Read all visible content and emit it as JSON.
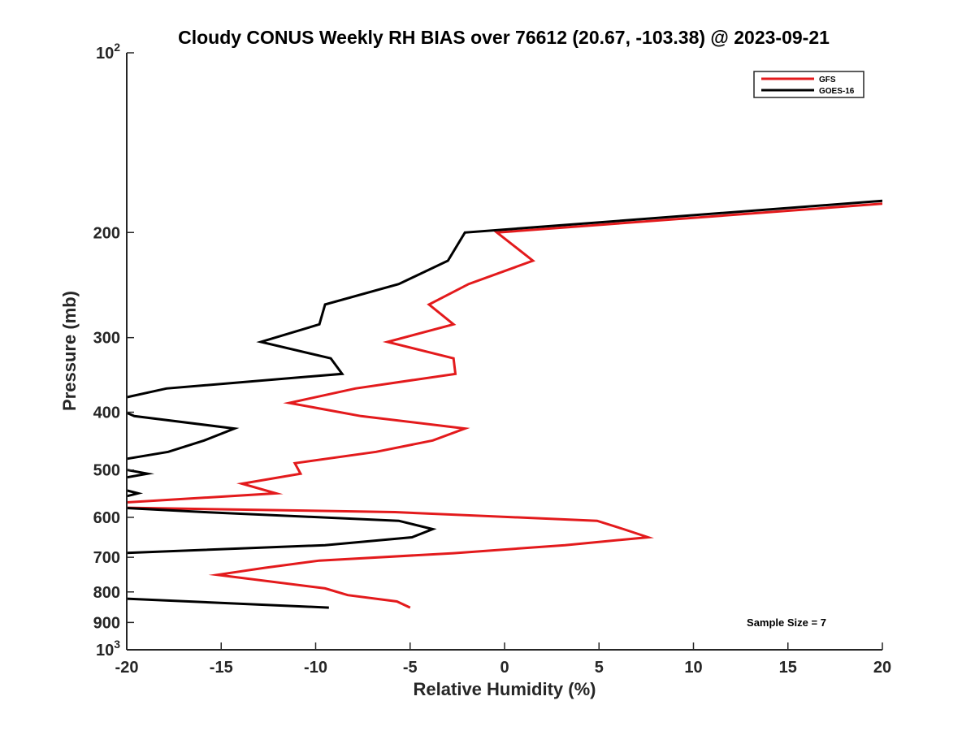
{
  "chart_data": {
    "type": "line",
    "title": "Cloudy CONUS Weekly RH BIAS over 76612 (20.67, -103.38) @ 2023-09-21",
    "xlabel": "Relative Humidity (%)",
    "ylabel": "Pressure (mb)",
    "xlim": [
      -20,
      20
    ],
    "ylim": [
      100,
      1000
    ],
    "yscale": "log",
    "yreversed": true,
    "xticks": [
      -20,
      -15,
      -10,
      -5,
      0,
      5,
      10,
      15,
      20
    ],
    "yticks": [
      {
        "value": 100,
        "label": "10",
        "sup": "2"
      },
      {
        "value": 200,
        "label": "200"
      },
      {
        "value": 300,
        "label": "300"
      },
      {
        "value": 400,
        "label": "400"
      },
      {
        "value": 500,
        "label": "500"
      },
      {
        "value": 600,
        "label": "600"
      },
      {
        "value": 700,
        "label": "700"
      },
      {
        "value": 800,
        "label": "800"
      },
      {
        "value": 900,
        "label": "900"
      },
      {
        "value": 1000,
        "label": "10",
        "sup": "3"
      }
    ],
    "legend_position": "top-right",
    "annotation": "Sample Size = 7",
    "series": [
      {
        "name": "GFS",
        "color": "#e31a1c",
        "points": [
          [
            20,
            179
          ],
          [
            -0.4,
            200
          ],
          [
            1.5,
            223
          ],
          [
            -1.9,
            244
          ],
          [
            -4,
            264
          ],
          [
            -2.7,
            285
          ],
          [
            -6.2,
            305
          ],
          [
            -2.7,
            325
          ],
          [
            -2.6,
            345
          ],
          [
            -7.9,
            365
          ],
          [
            -11.4,
            386
          ],
          [
            -7.6,
            406
          ],
          [
            -2.1,
            426
          ],
          [
            -3.8,
            446
          ],
          [
            -6.8,
            466
          ],
          [
            -11.1,
            487
          ],
          [
            -10.8,
            507
          ],
          [
            -13.9,
            527
          ],
          [
            -12.1,
            547
          ],
          [
            -20.3,
            567
          ],
          [
            -20.3,
            578
          ],
          [
            -5.8,
            588
          ],
          [
            4.9,
            608
          ],
          [
            6.3,
            628
          ],
          [
            7.6,
            648
          ],
          [
            3.2,
            668
          ],
          [
            -2.7,
            689
          ],
          [
            -9.8,
            709
          ],
          [
            -12.7,
            729
          ],
          [
            -15.2,
            749
          ],
          [
            -9.5,
            789
          ],
          [
            -8.3,
            810
          ],
          [
            -5.7,
            830
          ],
          [
            -5,
            850
          ]
        ]
      },
      {
        "name": "GOES-16",
        "color": "#000000",
        "points": [
          [
            20,
            177
          ],
          [
            -2.1,
            200
          ],
          [
            -3,
            223
          ],
          [
            -5.6,
            244
          ],
          [
            -9.5,
            264
          ],
          [
            -9.8,
            285
          ],
          [
            -12.9,
            305
          ],
          [
            -9.2,
            325
          ],
          [
            -8.6,
            345
          ],
          [
            -17.9,
            365
          ],
          [
            -20.4,
            380
          ],
          [
            -20.4,
            396
          ],
          [
            -19.6,
            406
          ],
          [
            -14.3,
            426
          ],
          [
            -15.9,
            446
          ],
          [
            -17.8,
            466
          ],
          [
            -20.4,
            481
          ],
          [
            -20.4,
            497
          ],
          [
            -18.9,
            507
          ],
          [
            -20.4,
            517
          ],
          [
            -20.4,
            537
          ],
          [
            -19.4,
            547
          ],
          [
            -20.4,
            557
          ],
          [
            -20.4,
            578
          ],
          [
            -15.9,
            588
          ],
          [
            -5.6,
            608
          ],
          [
            -3.8,
            628
          ],
          [
            -4.9,
            648
          ],
          [
            -9.5,
            668
          ],
          [
            -20.4,
            689
          ],
          [
            -20.4,
            820
          ],
          [
            -9.3,
            850
          ]
        ]
      }
    ]
  }
}
